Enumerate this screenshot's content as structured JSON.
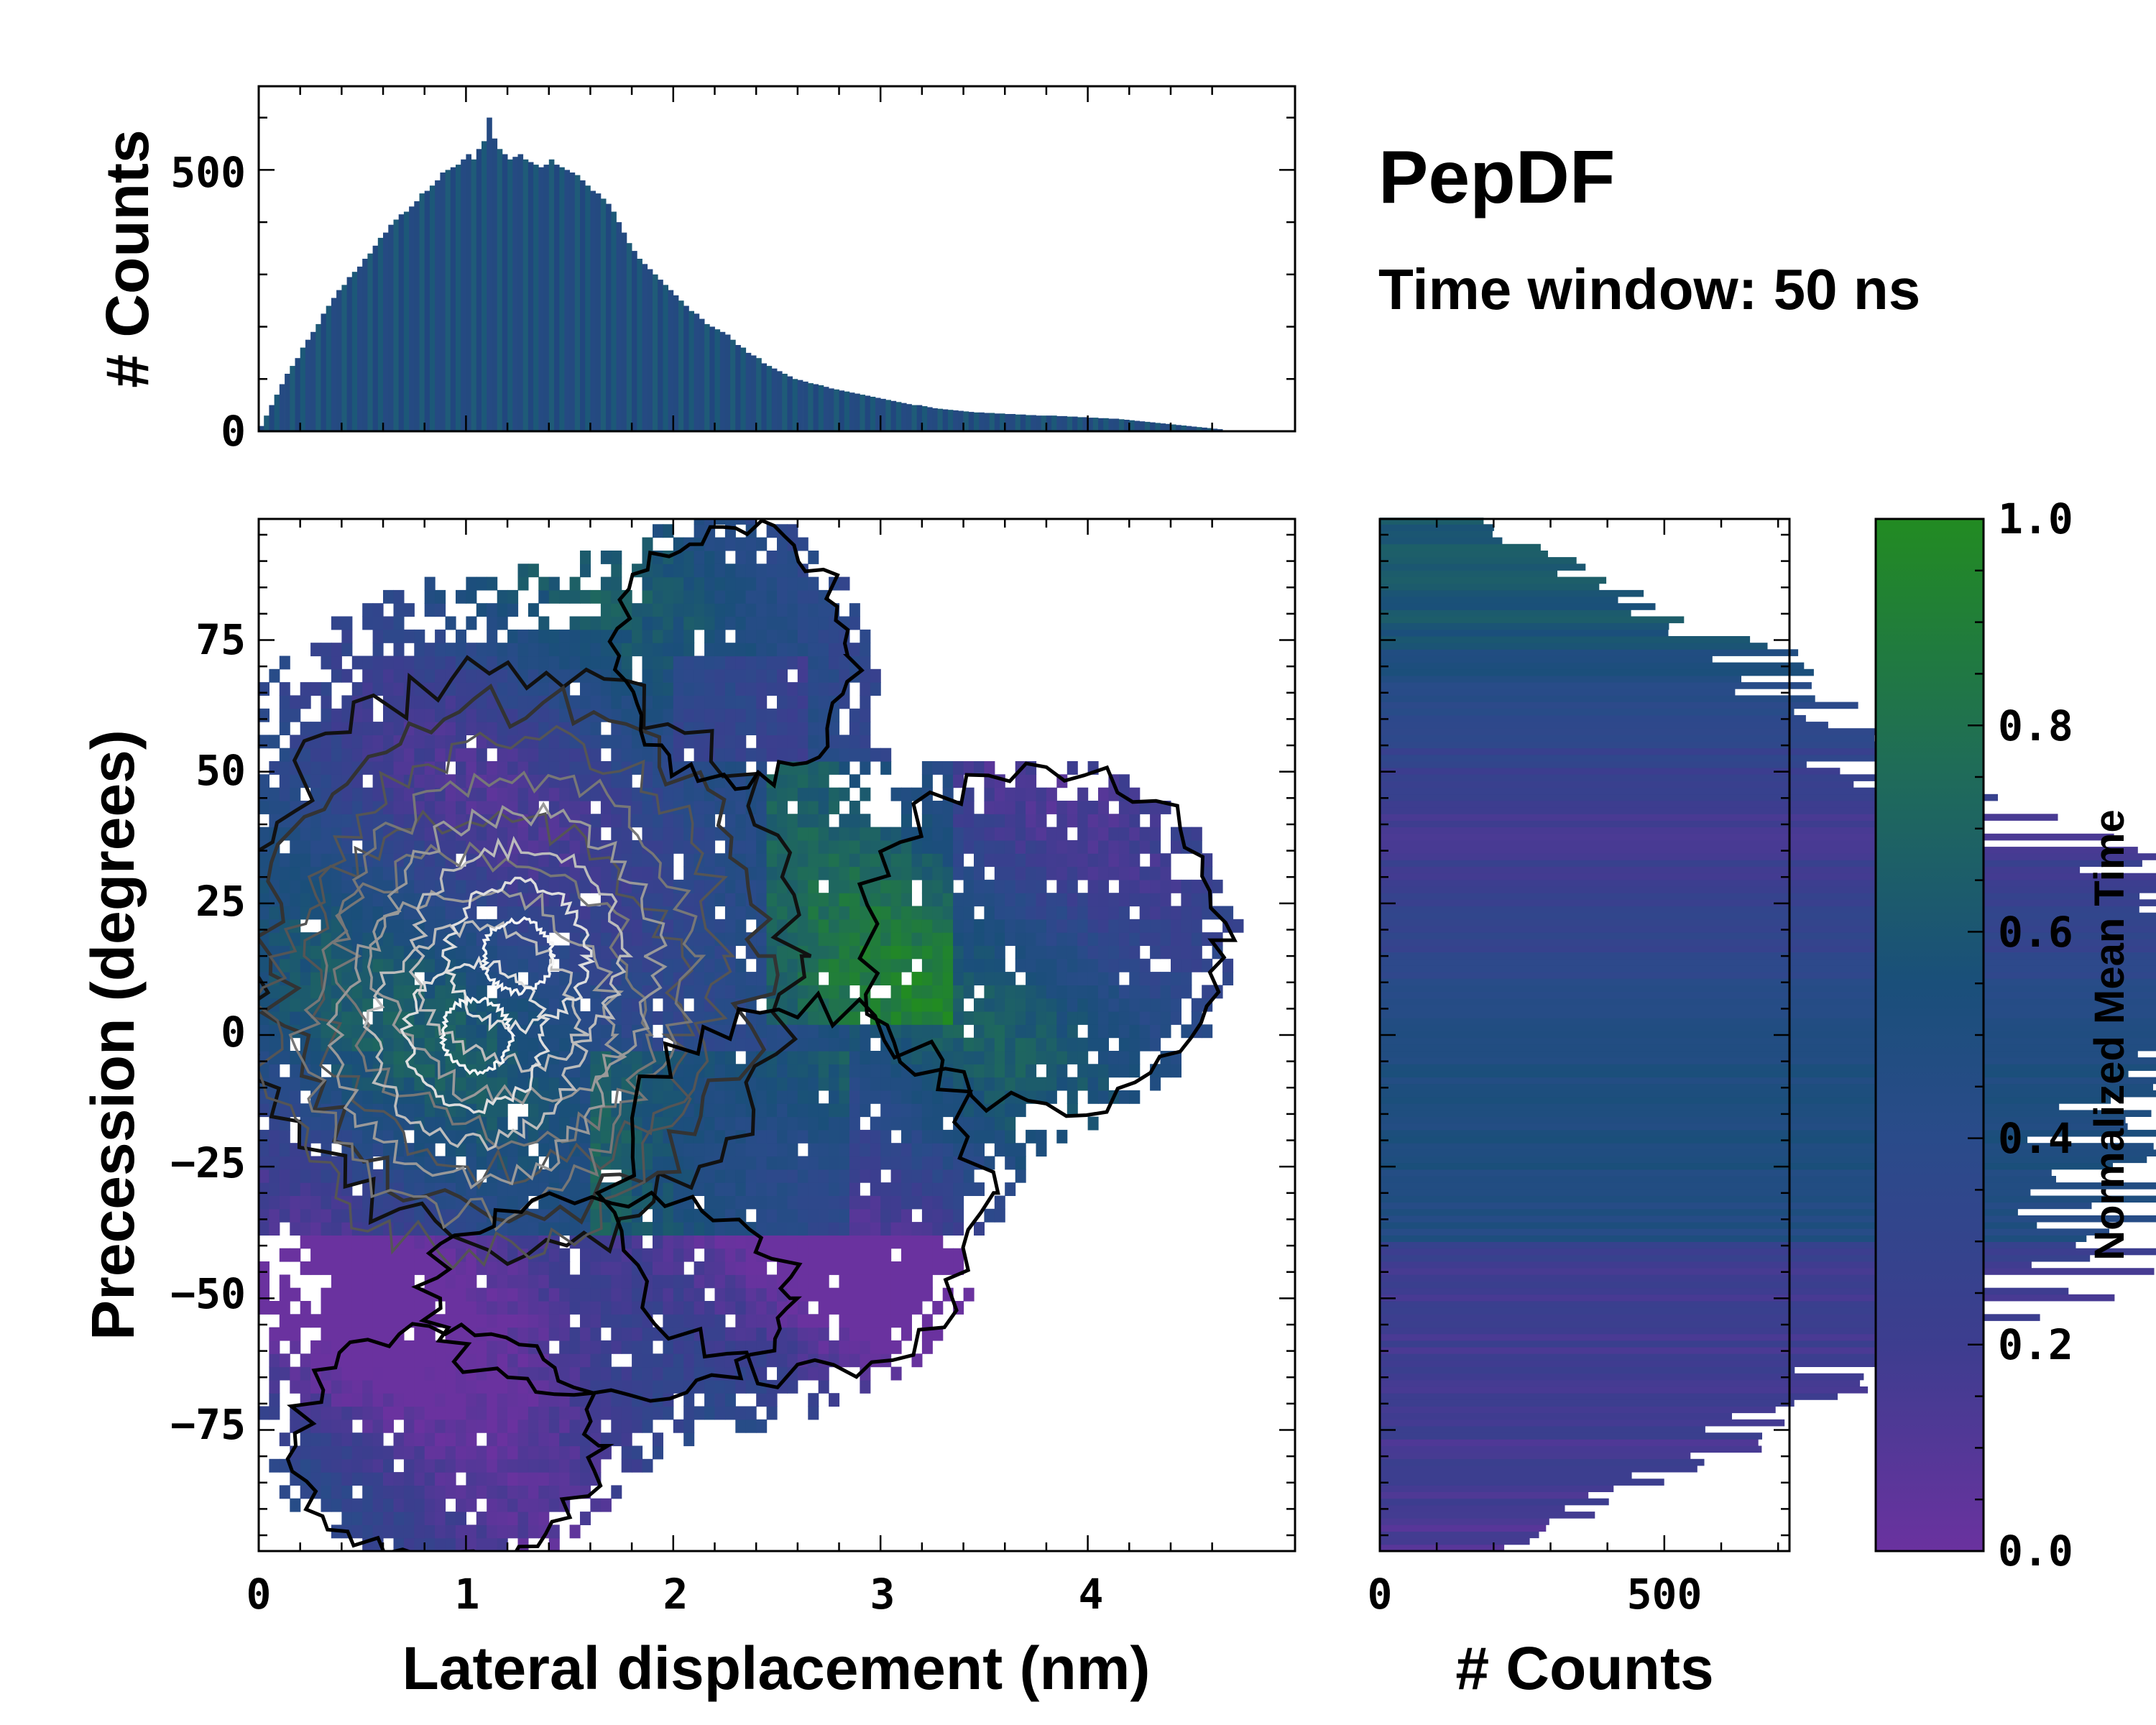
{
  "chart_data": {
    "type": "heatmap",
    "title": "PepDF",
    "subtitle": "Time window: 50 ns",
    "xlabel": "Lateral displacement (nm)",
    "ylabel": "Precession (degrees)",
    "xlim": [
      0,
      5.0
    ],
    "ylim": [
      -98,
      98
    ],
    "xticks": [
      "0",
      "1",
      "2",
      "3",
      "4"
    ],
    "xtick_values": [
      0,
      1,
      2,
      3,
      4
    ],
    "yticks": [
      "−75",
      "−50",
      "−25",
      "0",
      "25",
      "50",
      "75"
    ],
    "ytick_values": [
      -75,
      -50,
      -25,
      0,
      25,
      50,
      75
    ],
    "top_hist": {
      "ylabel": "# Counts",
      "ylim": [
        0,
        660
      ],
      "yticks": [
        "0",
        "500"
      ],
      "ytick_values": [
        0,
        500
      ],
      "bin_width": 0.025,
      "values": [
        10,
        30,
        50,
        70,
        90,
        110,
        125,
        140,
        160,
        175,
        190,
        205,
        225,
        240,
        255,
        270,
        280,
        295,
        305,
        315,
        330,
        340,
        355,
        370,
        380,
        395,
        405,
        415,
        420,
        430,
        440,
        455,
        460,
        470,
        480,
        495,
        500,
        505,
        510,
        520,
        530,
        520,
        540,
        555,
        600,
        560,
        540,
        530,
        520,
        525,
        530,
        520,
        515,
        510,
        505,
        510,
        520,
        510,
        505,
        500,
        495,
        490,
        480,
        470,
        460,
        455,
        445,
        435,
        420,
        400,
        380,
        360,
        345,
        330,
        320,
        310,
        300,
        290,
        280,
        270,
        260,
        250,
        240,
        230,
        225,
        215,
        205,
        200,
        195,
        190,
        185,
        175,
        165,
        160,
        150,
        145,
        140,
        130,
        125,
        120,
        115,
        110,
        105,
        100,
        98,
        95,
        92,
        90,
        88,
        85,
        82,
        80,
        78,
        76,
        74,
        72,
        70,
        68,
        66,
        64,
        62,
        60,
        58,
        56,
        54,
        52,
        50,
        50,
        48,
        46,
        44,
        43,
        42,
        41,
        40,
        39,
        38,
        37,
        36,
        36,
        35,
        35,
        34,
        34,
        33,
        33,
        32,
        32,
        31,
        31,
        30,
        30,
        30,
        30,
        29,
        29,
        28,
        28,
        27,
        27,
        26,
        26,
        25,
        25,
        24,
        24,
        23,
        22,
        21,
        20,
        19,
        18,
        17,
        16,
        15,
        14,
        13,
        12,
        11,
        10,
        9,
        8,
        7,
        6,
        5,
        4
      ],
      "colors": [
        "#244a80",
        "#1f5b78",
        "#21477e",
        "#1c5878",
        "#254a82"
      ]
    },
    "side_hist": {
      "xlabel": "# Counts",
      "xlim": [
        0,
        720
      ],
      "xticks": [
        "0",
        "500"
      ],
      "xtick_values": [
        0,
        500
      ],
      "bin_width": 1.25
    },
    "colorbar": {
      "label": "Normalized Mean Time",
      "range": [
        0.0,
        1.0
      ],
      "ticks": [
        "0.0",
        "0.2",
        "0.4",
        "0.6",
        "0.8",
        "1.0"
      ],
      "tick_values": [
        0.0,
        0.2,
        0.4,
        0.6,
        0.8,
        1.0
      ],
      "colormap": [
        "#6a329f",
        "#3d3d8f",
        "#2a4b8a",
        "#1a4f7a",
        "#1f6b5a",
        "#228b22"
      ]
    },
    "heatmap_cell_size": [
      0.05,
      2.5
    ],
    "contour_levels": 8,
    "contour_colors": [
      "#111111",
      "#333333",
      "#555555",
      "#777777",
      "#999999",
      "#bbbbbb",
      "#dddddd",
      "#f4f4f4"
    ]
  }
}
